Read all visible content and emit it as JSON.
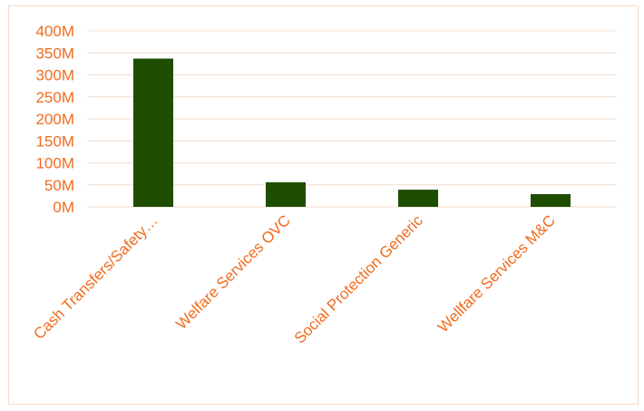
{
  "chart_data": {
    "type": "bar",
    "categories": [
      "Cash Transfers/Safety…",
      "Welfare Services OVC",
      "Social Protection Generic",
      "Wellfare Services M&C"
    ],
    "values": [
      337000000,
      56000000,
      39000000,
      29000000
    ],
    "y_tick_values": [
      0,
      50000000,
      100000000,
      150000000,
      200000000,
      250000000,
      300000000,
      350000000,
      400000000
    ],
    "y_tick_labels": [
      "0M",
      "50M",
      "100M",
      "150M",
      "200M",
      "250M",
      "300M",
      "350M",
      "400M"
    ],
    "ylim": [
      0,
      400000000
    ],
    "grid": true,
    "legend": "none",
    "title": "",
    "xlabel": "",
    "ylabel": "",
    "colors": {
      "bar": "#1f4e00",
      "text": "#f26b1d",
      "grid": "#f4dccb",
      "border": "#f3d9c8"
    }
  }
}
